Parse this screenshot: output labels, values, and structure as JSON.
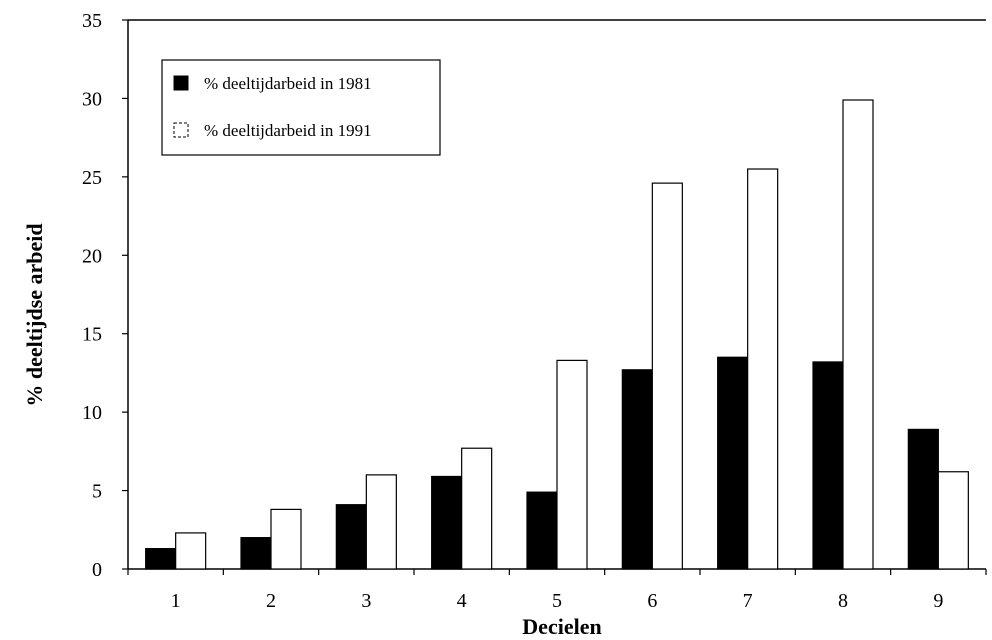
{
  "chart_data": {
    "type": "bar",
    "categories": [
      "1",
      "2",
      "3",
      "4",
      "5",
      "6",
      "7",
      "8",
      "9"
    ],
    "series": [
      {
        "name": "% deeltijdarbeid in 1981",
        "values": [
          1.3,
          2.0,
          4.1,
          5.9,
          4.9,
          12.7,
          13.5,
          13.2,
          8.9
        ],
        "color": "#000000"
      },
      {
        "name": "% deeltijdarbeid in 1991",
        "values": [
          2.3,
          3.8,
          6.0,
          7.7,
          13.3,
          24.6,
          25.5,
          29.9,
          6.2
        ],
        "color": "#ffffff"
      }
    ],
    "xlabel": "Decielen",
    "ylabel": "% deeltijdse arbeid",
    "ylim": [
      0,
      35
    ],
    "yticks": [
      "0",
      "5",
      "10",
      "15",
      "20",
      "25",
      "30",
      "35"
    ],
    "grid": false,
    "legend_position": "top-left"
  }
}
